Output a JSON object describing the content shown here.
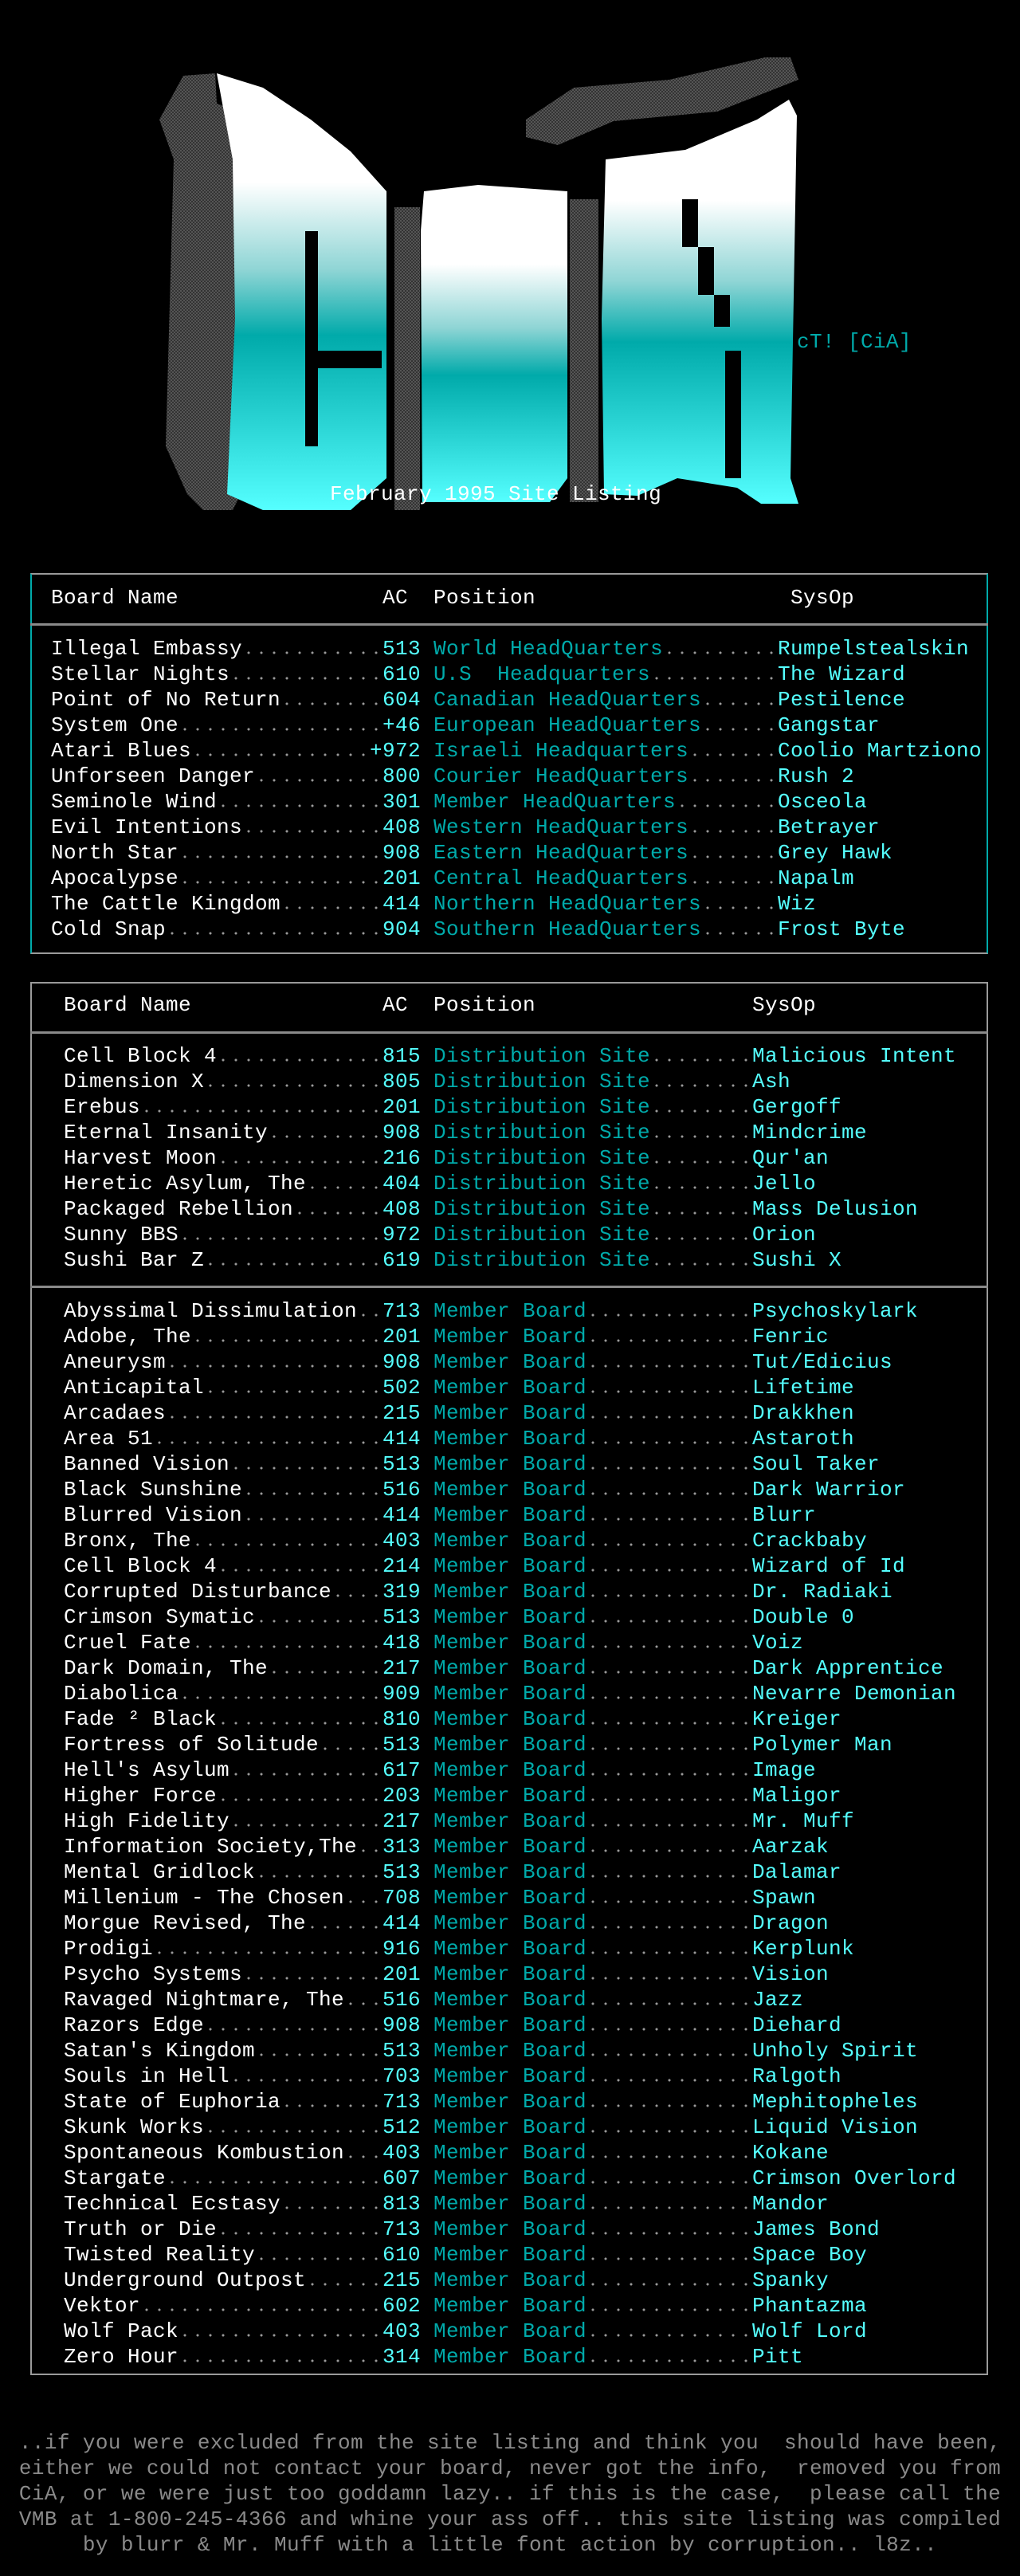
{
  "logo": {
    "lettering": "CiA",
    "credit": "cT! [CiA]",
    "subtitle": "February 1995 Site Listing"
  },
  "colors": {
    "background": "#000000",
    "board_name": "#ffffff",
    "area_code": "#55ffff",
    "position": "#00aaaa",
    "sysop": "#55ffff",
    "leader_dots": "#9a9a9a",
    "footer": "#8a8a8a"
  },
  "headquarters_table": {
    "headers": {
      "board_name": "Board Name",
      "ac": "AC",
      "position": "Position",
      "sysop": "SysOp"
    },
    "rows": [
      {
        "name": "Illegal Embassy",
        "ac": "513",
        "position": "World HeadQuarters",
        "sysop": "Rumpelstealskin"
      },
      {
        "name": "Stellar Nights",
        "ac": "610",
        "position": "U.S  Headquarters",
        "sysop": "The Wizard"
      },
      {
        "name": "Point of No Return",
        "ac": "604",
        "position": "Canadian HeadQuarters",
        "sysop": "Pestilence"
      },
      {
        "name": "System One",
        "ac": "+46",
        "position": "European HeadQuarters",
        "sysop": "Gangstar"
      },
      {
        "name": "Atari Blues",
        "ac": "+972",
        "position": "Israeli Headquarters",
        "sysop": "Coolio Martziono"
      },
      {
        "name": "Unforseen Danger",
        "ac": "800",
        "position": "Courier HeadQuarters",
        "sysop": "Rush 2"
      },
      {
        "name": "Seminole Wind",
        "ac": "301",
        "position": "Member HeadQuarters",
        "sysop": "Osceola"
      },
      {
        "name": "Evil Intentions",
        "ac": "408",
        "position": "Western HeadQuarters",
        "sysop": "Betrayer"
      },
      {
        "name": "North Star",
        "ac": "908",
        "position": "Eastern HeadQuarters",
        "sysop": "Grey Hawk"
      },
      {
        "name": "Apocalypse",
        "ac": "201",
        "position": "Central HeadQuarters",
        "sysop": "Napalm"
      },
      {
        "name": "The Cattle Kingdom",
        "ac": "414",
        "position": "Northern HeadQuarters",
        "sysop": "Wiz"
      },
      {
        "name": "Cold Snap",
        "ac": "904",
        "position": "Southern HeadQuarters",
        "sysop": "Frost Byte"
      }
    ]
  },
  "sites_table": {
    "headers": {
      "board_name": "Board Name",
      "ac": "AC",
      "position": "Position",
      "sysop": "SysOp"
    },
    "distribution_rows": [
      {
        "name": "Cell Block 4",
        "ac": "815",
        "position": "Distribution Site",
        "sysop": "Malicious Intent"
      },
      {
        "name": "Dimension X",
        "ac": "805",
        "position": "Distribution Site",
        "sysop": "Ash"
      },
      {
        "name": "Erebus",
        "ac": "201",
        "position": "Distribution Site",
        "sysop": "Gergoff"
      },
      {
        "name": "Eternal Insanity",
        "ac": "908",
        "position": "Distribution Site",
        "sysop": "Mindcrime"
      },
      {
        "name": "Harvest Moon",
        "ac": "216",
        "position": "Distribution Site",
        "sysop": "Qur'an"
      },
      {
        "name": "Heretic Asylum, The",
        "ac": "404",
        "position": "Distribution Site",
        "sysop": "Jello"
      },
      {
        "name": "Packaged Rebellion",
        "ac": "408",
        "position": "Distribution Site",
        "sysop": "Mass Delusion"
      },
      {
        "name": "Sunny BBS",
        "ac": "972",
        "position": "Distribution Site",
        "sysop": "Orion"
      },
      {
        "name": "Sushi Bar Z",
        "ac": "619",
        "position": "Distribution Site",
        "sysop": "Sushi X"
      }
    ],
    "member_rows": [
      {
        "name": "Abyssimal Dissimulation",
        "ac": "713",
        "position": "Member Board",
        "sysop": "Psychoskylark"
      },
      {
        "name": "Adobe, The",
        "ac": "201",
        "position": "Member Board",
        "sysop": "Fenric"
      },
      {
        "name": "Aneurysm",
        "ac": "908",
        "position": "Member Board",
        "sysop": "Tut/Edicius"
      },
      {
        "name": "Anticapital",
        "ac": "502",
        "position": "Member Board",
        "sysop": "Lifetime"
      },
      {
        "name": "Arcadaes",
        "ac": "215",
        "position": "Member Board",
        "sysop": "Drakkhen"
      },
      {
        "name": "Area 51",
        "ac": "414",
        "position": "Member Board",
        "sysop": "Astaroth"
      },
      {
        "name": "Banned Vision",
        "ac": "513",
        "position": "Member Board",
        "sysop": "Soul Taker"
      },
      {
        "name": "Black Sunshine",
        "ac": "516",
        "position": "Member Board",
        "sysop": "Dark Warrior"
      },
      {
        "name": "Blurred Vision",
        "ac": "414",
        "position": "Member Board",
        "sysop": "Blurr"
      },
      {
        "name": "Bronx, The",
        "ac": "403",
        "position": "Member Board",
        "sysop": "Crackbaby"
      },
      {
        "name": "Cell Block 4",
        "ac": "214",
        "position": "Member Board",
        "sysop": "Wizard of Id"
      },
      {
        "name": "Corrupted Disturbance",
        "ac": "319",
        "position": "Member Board",
        "sysop": "Dr. Radiaki"
      },
      {
        "name": "Crimson Symatic",
        "ac": "513",
        "position": "Member Board",
        "sysop": "Double 0"
      },
      {
        "name": "Cruel Fate",
        "ac": "418",
        "position": "Member Board",
        "sysop": "Voiz"
      },
      {
        "name": "Dark Domain, The",
        "ac": "217",
        "position": "Member Board",
        "sysop": "Dark Apprentice"
      },
      {
        "name": "Diabolica",
        "ac": "909",
        "position": "Member Board",
        "sysop": "Nevarre Demonian"
      },
      {
        "name": "Fade ² Black",
        "ac": "810",
        "position": "Member Board",
        "sysop": "Kreiger"
      },
      {
        "name": "Fortress of Solitude",
        "ac": "513",
        "position": "Member Board",
        "sysop": "Polymer Man"
      },
      {
        "name": "Hell's Asylum",
        "ac": "617",
        "position": "Member Board",
        "sysop": "Image"
      },
      {
        "name": "Higher Force",
        "ac": "203",
        "position": "Member Board",
        "sysop": "Maligor"
      },
      {
        "name": "High Fidelity",
        "ac": "217",
        "position": "Member Board",
        "sysop": "Mr. Muff"
      },
      {
        "name": "Information Society,The",
        "ac": "313",
        "position": "Member Board",
        "sysop": "Aarzak"
      },
      {
        "name": "Mental Gridlock",
        "ac": "513",
        "position": "Member Board",
        "sysop": "Dalamar"
      },
      {
        "name": "Millenium - The Chosen",
        "ac": "708",
        "position": "Member Board",
        "sysop": "Spawn"
      },
      {
        "name": "Morgue Revised, The",
        "ac": "414",
        "position": "Member Board",
        "sysop": "Dragon"
      },
      {
        "name": "Prodigi",
        "ac": "916",
        "position": "Member Board",
        "sysop": "Kerplunk"
      },
      {
        "name": "Psycho Systems",
        "ac": "201",
        "position": "Member Board",
        "sysop": "Vision"
      },
      {
        "name": "Ravaged Nightmare, The",
        "ac": "516",
        "position": "Member Board",
        "sysop": "Jazz"
      },
      {
        "name": "Razors Edge",
        "ac": "908",
        "position": "Member Board",
        "sysop": "Diehard"
      },
      {
        "name": "Satan's Kingdom",
        "ac": "513",
        "position": "Member Board",
        "sysop": "Unholy Spirit"
      },
      {
        "name": "Souls in Hell",
        "ac": "703",
        "position": "Member Board",
        "sysop": "Ralgoth"
      },
      {
        "name": "State of Euphoria",
        "ac": "713",
        "position": "Member Board",
        "sysop": "Mephitopheles"
      },
      {
        "name": "Skunk Works",
        "ac": "512",
        "position": "Member Board",
        "sysop": "Liquid Vision"
      },
      {
        "name": "Spontaneous Kombustion",
        "ac": "403",
        "position": "Member Board",
        "sysop": "Kokane"
      },
      {
        "name": "Stargate",
        "ac": "607",
        "position": "Member Board",
        "sysop": "Crimson Overlord"
      },
      {
        "name": "Technical Ecstasy",
        "ac": "813",
        "position": "Member Board",
        "sysop": "Mandor"
      },
      {
        "name": "Truth or Die",
        "ac": "713",
        "position": "Member Board",
        "sysop": "James Bond"
      },
      {
        "name": "Twisted Reality",
        "ac": "610",
        "position": "Member Board",
        "sysop": "Space Boy"
      },
      {
        "name": "Underground Outpost",
        "ac": "215",
        "position": "Member Board",
        "sysop": "Spanky"
      },
      {
        "name": "Vektor",
        "ac": "602",
        "position": "Member Board",
        "sysop": "Phantazma"
      },
      {
        "name": "Wolf Pack",
        "ac": "403",
        "position": "Member Board",
        "sysop": "Wolf Lord"
      },
      {
        "name": "Zero Hour",
        "ac": "314",
        "position": "Member Board",
        "sysop": "Pitt"
      }
    ]
  },
  "footer": {
    "lines": [
      "..if you were excluded from the site listing and think you  should have been,",
      "either we could not contact your board, never got the info,  removed you from",
      "CiA, or we were just too goddamn lazy.. if this is the case,  please call the",
      "VMB at 1-800-245-4366 and whine your ass off.. this site listing was compiled",
      "by blurr & Mr. Muff with a little font action by corruption.. l8z.."
    ]
  }
}
